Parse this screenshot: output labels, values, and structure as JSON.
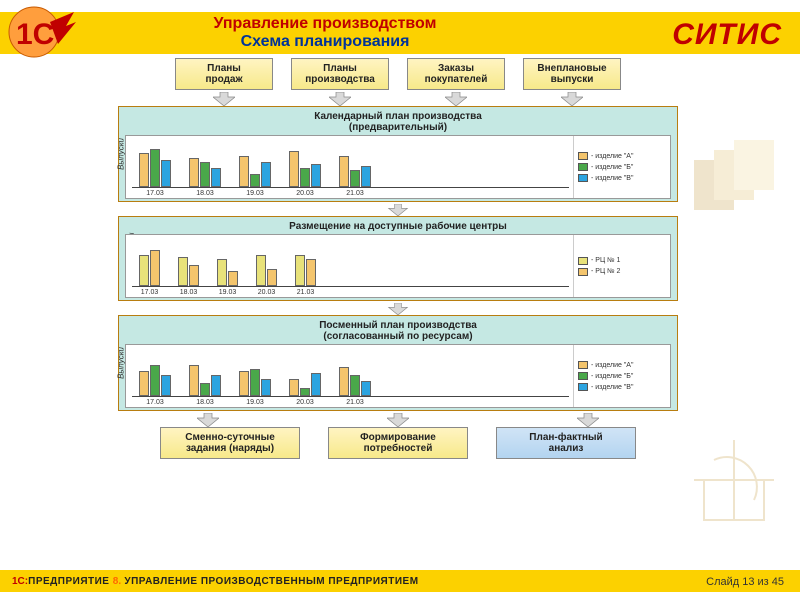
{
  "header": {
    "title_line1": "Управление производством",
    "title_line2": "Схема планирования",
    "brand": "СИТИС"
  },
  "logo": {
    "color_orange": "#ff6600",
    "color_red": "#c00000"
  },
  "input_boxes": [
    {
      "label": "Планы\nпродаж"
    },
    {
      "label": "Планы\nпроизводства"
    },
    {
      "label": "Заказы\nпокупателей"
    },
    {
      "label": "Внеплановые\nвыпуски"
    }
  ],
  "output_boxes": [
    {
      "label": "Сменно-суточные\nзадания (наряды)",
      "variant": "yellow"
    },
    {
      "label": "Формирование\nпотребностей",
      "variant": "yellow"
    },
    {
      "label": "План-фактный\nанализ",
      "variant": "blue"
    }
  ],
  "charts": [
    {
      "title": "Календарный план производства\n(предварительный)",
      "y_label": "Выпуски",
      "categories": [
        "17.03",
        "18.03",
        "19.03",
        "20.03",
        "21.03"
      ],
      "series": [
        {
          "name": "- изделие \"А\"",
          "color": "#f4c56d"
        },
        {
          "name": "- изделие \"Б\"",
          "color": "#4aa84a"
        },
        {
          "name": "- изделие \"В\"",
          "color": "#2ca4e0"
        }
      ],
      "values": [
        [
          32,
          36,
          26
        ],
        [
          28,
          24,
          18
        ],
        [
          30,
          12,
          24
        ],
        [
          34,
          18,
          22
        ],
        [
          30,
          16,
          20
        ]
      ],
      "max": 40,
      "bg": "#c5e8e3"
    },
    {
      "title": "Размещение на доступные рабочие центры",
      "y_label": "Доступности",
      "categories": [
        "17.03",
        "18.03",
        "19.03",
        "20.03",
        "21.03"
      ],
      "series": [
        {
          "name": "- РЦ № 1",
          "color": "#e8e27a"
        },
        {
          "name": "- РЦ № 2",
          "color": "#f4c56d"
        }
      ],
      "values": [
        [
          30,
          34
        ],
        [
          28,
          20
        ],
        [
          26,
          14
        ],
        [
          30,
          16
        ],
        [
          30,
          26
        ]
      ],
      "max": 40,
      "bg": "#c5e8e3"
    },
    {
      "title": "Посменный план производства\n(согласованный по ресурсам)",
      "y_label": "Выпуски",
      "categories": [
        "17.03",
        "18.03",
        "19.03",
        "20.03",
        "21.03"
      ],
      "series": [
        {
          "name": "- изделие \"А\"",
          "color": "#f4c56d"
        },
        {
          "name": "- изделие \"Б\"",
          "color": "#4aa84a"
        },
        {
          "name": "- изделие \"В\"",
          "color": "#2ca4e0"
        }
      ],
      "values": [
        [
          24,
          30,
          20
        ],
        [
          30,
          12,
          20
        ],
        [
          24,
          26,
          16
        ],
        [
          16,
          8,
          22
        ],
        [
          28,
          20,
          14
        ]
      ],
      "max": 40,
      "bg": "#c5e8e3"
    }
  ],
  "footer": {
    "prefix_red": "1С:",
    "prefix_rest": "ПРЕДПРИЯТИЕ ",
    "eight": "8.",
    "suffix": " УПРАВЛЕНИЕ ПРОИЗВОДСТВЕННЫМ ПРЕДПРИЯТИЕМ",
    "slide": "Слайд 13 из 45"
  },
  "style": {
    "arrow_fill": "#d9d9d9",
    "arrow_stroke": "#888888",
    "box_yellow_top": "#fff4c2",
    "box_yellow_bottom": "#f7e98a",
    "box_blue_top": "#d0e4f6",
    "box_blue_bottom": "#b3d4f0",
    "header_bg": "#fcd100"
  }
}
